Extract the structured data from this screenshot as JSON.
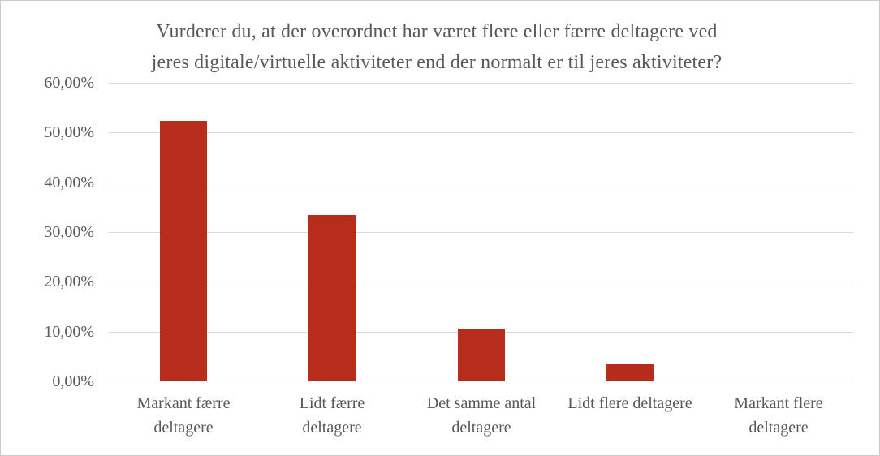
{
  "chart_data": {
    "type": "bar",
    "title": "Vurderer du, at der overordnet har været flere eller færre deltagere ved jeres digitale/virtuelle aktiviteter end der normalt er til jeres aktiviteter?",
    "title_lines": [
      "Vurderer du, at der overordnet har været flere eller færre deltagere ved",
      "jeres digitale/virtuelle aktiviteter end der normalt er til jeres aktiviteter?"
    ],
    "categories": [
      "Markant færre deltagere",
      "Lidt færre deltagere",
      "Det samme antal deltagere",
      "Lidt flere deltagere",
      "Markant flere deltagere"
    ],
    "categories_wrapped": [
      [
        "Markant færre",
        "deltagere"
      ],
      [
        "Lidt færre",
        "deltagere"
      ],
      [
        "Det samme antal",
        "deltagere"
      ],
      [
        "Lidt flere deltagere"
      ],
      [
        "Markant flere",
        "deltagere"
      ]
    ],
    "values": [
      52.3,
      33.4,
      10.6,
      3.4,
      0
    ],
    "unit": "%",
    "ylabel": "",
    "xlabel": "",
    "ylim": [
      0,
      60
    ],
    "ytick_step": 10,
    "ytick_labels": [
      "0,00%",
      "10,00%",
      "20,00%",
      "30,00%",
      "40,00%",
      "50,00%",
      "60,00%"
    ],
    "grid": true,
    "legend": "none",
    "colors": {
      "bar": "#b82c1c",
      "text": "#595959",
      "gridline": "#d9d9d9",
      "border": "#c9c9c9",
      "background": "#ffffff"
    }
  }
}
